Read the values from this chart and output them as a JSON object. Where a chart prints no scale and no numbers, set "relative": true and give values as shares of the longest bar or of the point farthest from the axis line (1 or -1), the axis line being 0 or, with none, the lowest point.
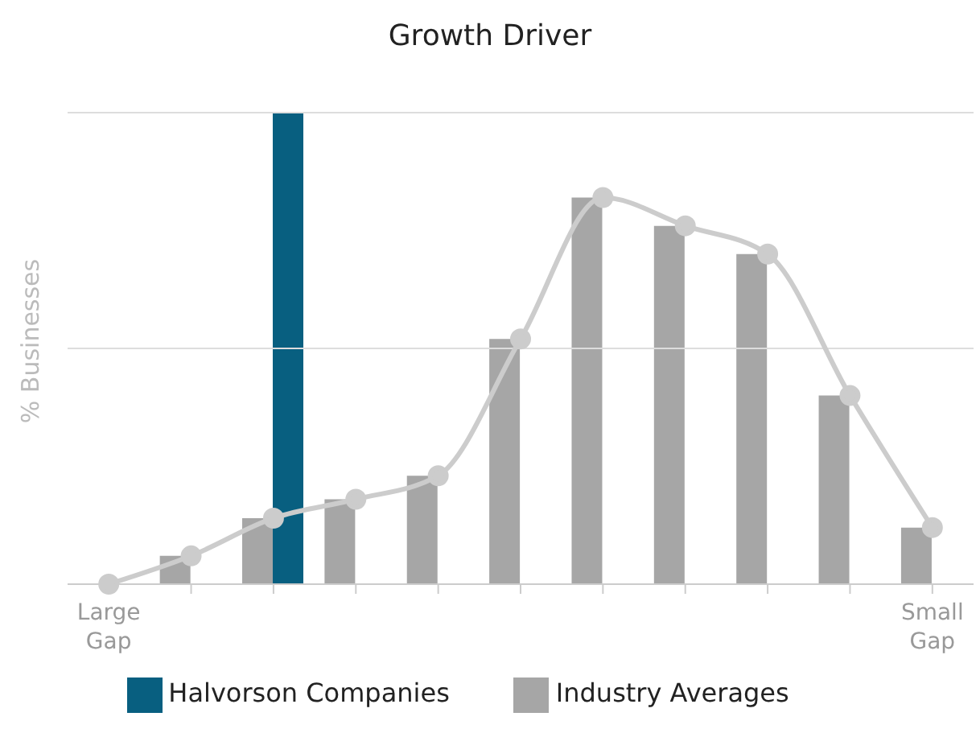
{
  "chart_data": {
    "type": "bar",
    "title": "Growth Driver",
    "ylabel": "% Businesses",
    "relative": true,
    "ref_lines": [
      {
        "axis": "y",
        "value": 0.5,
        "color": "#dddddd"
      },
      {
        "axis": "y",
        "value": 1,
        "color": "#dddddd"
      }
    ],
    "legend": "bottom",
    "marker": "circle",
    "categories": [
      "Large Gap",
      null,
      null,
      null,
      null,
      null,
      null,
      null,
      null,
      null,
      "Small Gap"
    ],
    "series": [
      {
        "name": "Industry Averages",
        "color": "#a6a6a6",
        "values": [
          0,
          0.06,
          0.14,
          0.18,
          0.23,
          0.52,
          0.82,
          0.76,
          0.7,
          0.4,
          0.12
        ]
      },
      {
        "type": "line",
        "color": "#cccccc",
        "values": [
          0,
          0.06,
          0.14,
          0.18,
          0.23,
          0.52,
          0.82,
          0.76,
          0.7,
          0.4,
          0.12
        ]
      },
      {
        "name": "Halvorson Companies",
        "color": "#085f80",
        "values": [
          null,
          null,
          1,
          null,
          null,
          null,
          null,
          null,
          null,
          null,
          null
        ]
      }
    ]
  }
}
